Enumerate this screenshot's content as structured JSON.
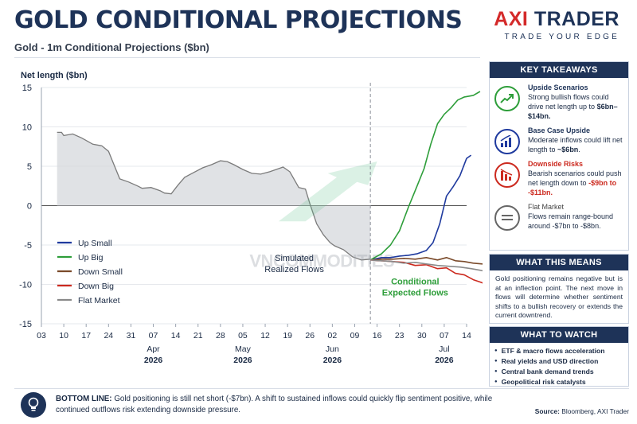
{
  "header": {
    "title": "GOLD CONDITIONAL PROJECTIONS",
    "subtitle": "Gold - 1m Conditional Projections ($bn)"
  },
  "brand": {
    "axi": "AXI",
    "trader": "TRADER",
    "tagline": "TRADE YOUR EDGE"
  },
  "colors": {
    "navy": "#1e3358",
    "up_small": "#1f3a9e",
    "up_big": "#2e9e3a",
    "down_small": "#7a4a2a",
    "down_big": "#cc2a1f",
    "flat": "#8a8a8a",
    "brand_red": "#d42a2a"
  },
  "chart_data": {
    "type": "line",
    "ylabel": "Net length ($bn)",
    "ylim": [
      -15,
      15
    ],
    "yticks": [
      15,
      10,
      5,
      0,
      -5,
      -10,
      -15
    ],
    "xticks": [
      "03",
      "10",
      "17",
      "24",
      "31",
      "07",
      "14",
      "21",
      "28",
      "05",
      "12",
      "19",
      "26",
      "02",
      "09",
      "16",
      "23",
      "30",
      "07",
      "14"
    ],
    "month_labels": [
      {
        "month": "Apr",
        "year": "2026",
        "tick": 5
      },
      {
        "month": "May",
        "year": "2026",
        "tick": 9
      },
      {
        "month": "Jun",
        "year": "2026",
        "tick": 13
      },
      {
        "month": "Jul",
        "year": "2026",
        "tick": 18
      }
    ],
    "forecast_start": "2026-06-02",
    "annotations": {
      "realized": [
        "Simulated",
        "Realized Flows"
      ],
      "expected": [
        "Conditional",
        "Expected Flows"
      ],
      "watermark": "VNCOMMODITIES"
    },
    "realized": {
      "t": [
        0.7,
        0.9,
        1.0,
        1.4,
        1.8,
        2.3,
        2.7,
        3.0,
        3.2,
        3.5,
        3.9,
        4.3,
        4.5,
        4.9,
        5.3,
        5.5,
        5.8,
        6.1,
        6.4,
        6.8,
        7.2,
        7.6,
        8.0,
        8.3,
        8.6,
        9.0,
        9.4,
        9.8,
        10.2,
        10.6,
        10.8,
        11.1,
        11.5,
        11.8,
        12.0,
        12.3,
        12.6,
        12.9,
        13.1,
        13.5,
        13.9,
        14.3,
        14.7
      ],
      "y": [
        9.3,
        9.3,
        8.9,
        9.1,
        8.6,
        7.8,
        7.6,
        6.9,
        5.5,
        3.4,
        3.0,
        2.5,
        2.2,
        2.3,
        1.9,
        1.6,
        1.5,
        2.6,
        3.6,
        4.2,
        4.8,
        5.2,
        5.7,
        5.6,
        5.2,
        4.6,
        4.1,
        4.0,
        4.3,
        4.7,
        4.9,
        4.3,
        2.3,
        2.1,
        0.2,
        -2.3,
        -3.7,
        -4.7,
        -5.1,
        -5.6,
        -6.5,
        -6.9,
        -6.8
      ]
    },
    "series": [
      {
        "name": "Up Small",
        "t": [
          14.7,
          15.2,
          15.6,
          16.0,
          16.4,
          16.8,
          17.2,
          17.5,
          17.8,
          18.1,
          18.4,
          18.7,
          19.0,
          19.2
        ],
        "y": [
          -6.9,
          -6.6,
          -6.6,
          -6.4,
          -6.3,
          -6.1,
          -5.7,
          -4.7,
          -2.3,
          1.2,
          2.4,
          3.8,
          6.0,
          6.4
        ]
      },
      {
        "name": "Up Big",
        "t": [
          14.7,
          15.2,
          15.6,
          16.0,
          16.4,
          16.8,
          17.1,
          17.4,
          17.7,
          18.0,
          18.3,
          18.6,
          18.9,
          19.3,
          19.6
        ],
        "y": [
          -6.9,
          -6.1,
          -5.0,
          -3.2,
          -0.2,
          2.6,
          4.7,
          7.8,
          10.4,
          11.6,
          12.4,
          13.4,
          13.8,
          14.0,
          14.5
        ]
      },
      {
        "name": "Down Small",
        "t": [
          14.7,
          15.2,
          15.7,
          16.2,
          16.7,
          17.2,
          17.7,
          18.1,
          18.5,
          18.9,
          19.3,
          19.7,
          20.0
        ],
        "y": [
          -6.9,
          -6.8,
          -6.8,
          -6.7,
          -6.8,
          -6.6,
          -6.9,
          -6.6,
          -7.0,
          -7.1,
          -7.3,
          -7.4,
          -7.6
        ]
      },
      {
        "name": "Down Big",
        "t": [
          14.7,
          15.2,
          15.7,
          16.2,
          16.7,
          17.2,
          17.7,
          18.1,
          18.5,
          18.9,
          19.3,
          19.6,
          20.0
        ],
        "y": [
          -6.9,
          -7.0,
          -7.1,
          -7.2,
          -7.6,
          -7.5,
          -8.0,
          -7.9,
          -8.6,
          -8.8,
          -9.4,
          -9.7,
          -10.1
        ]
      },
      {
        "name": "Flat Market",
        "t": [
          14.7,
          15.2,
          15.7,
          16.2,
          16.7,
          17.2,
          17.7,
          18.2,
          18.7,
          19.2,
          19.6,
          20.0
        ],
        "y": [
          -6.9,
          -7.0,
          -7.1,
          -7.3,
          -7.2,
          -7.4,
          -7.6,
          -7.7,
          -7.8,
          -8.0,
          -8.2,
          -8.4
        ]
      }
    ]
  },
  "key_takeaways": {
    "heading": "KEY TAKEAWAYS",
    "items": [
      {
        "icon": "trend-up-icon",
        "color": "#2e9e3a",
        "title": "Upside Scenarios",
        "text": "Strong bullish flows could drive net length up to",
        "highlight": "$6bn–$14bn.",
        "after": ""
      },
      {
        "icon": "bar-chart-up-icon",
        "color": "#1f3a9e",
        "title": "Base Case Upside",
        "text": "Moderate inflows could lift net length to",
        "highlight": "~$6bn",
        "after": "."
      },
      {
        "icon": "bar-chart-down-icon",
        "color": "#cc2a1f",
        "title": "Downside Risks",
        "text": "Bearish scenarios could push net length down to",
        "highlight": "-$9bn to -$11bn.",
        "after": ""
      },
      {
        "icon": "equals-icon",
        "color": "#666666",
        "title": "Flat Market",
        "text": "Flows remain range-bound around -$7bn to -$8bn.",
        "highlight": "",
        "after": ""
      }
    ]
  },
  "what_this_means": {
    "heading": "WHAT THIS MEANS",
    "body": "Gold positioning remains negative but is at an inflection point. The next move in flows will determine whether sentiment shifts to a bullish recovery or extends the current downtrend."
  },
  "what_to_watch": {
    "heading": "WHAT TO WATCH",
    "items": [
      "ETF & macro flows acceleration",
      "Real yields and USD direction",
      "Central bank demand trends",
      "Geopolitical risk catalysts"
    ]
  },
  "bottom_line": {
    "label": "BOTTOM LINE:",
    "text": "Gold positioning is still net short (-$7bn). A shift to sustained inflows could quickly flip sentiment positive, while continued outflows risk extending downside pressure."
  },
  "source": {
    "label": "Source:",
    "text": "Bloomberg, AXI Trader"
  }
}
